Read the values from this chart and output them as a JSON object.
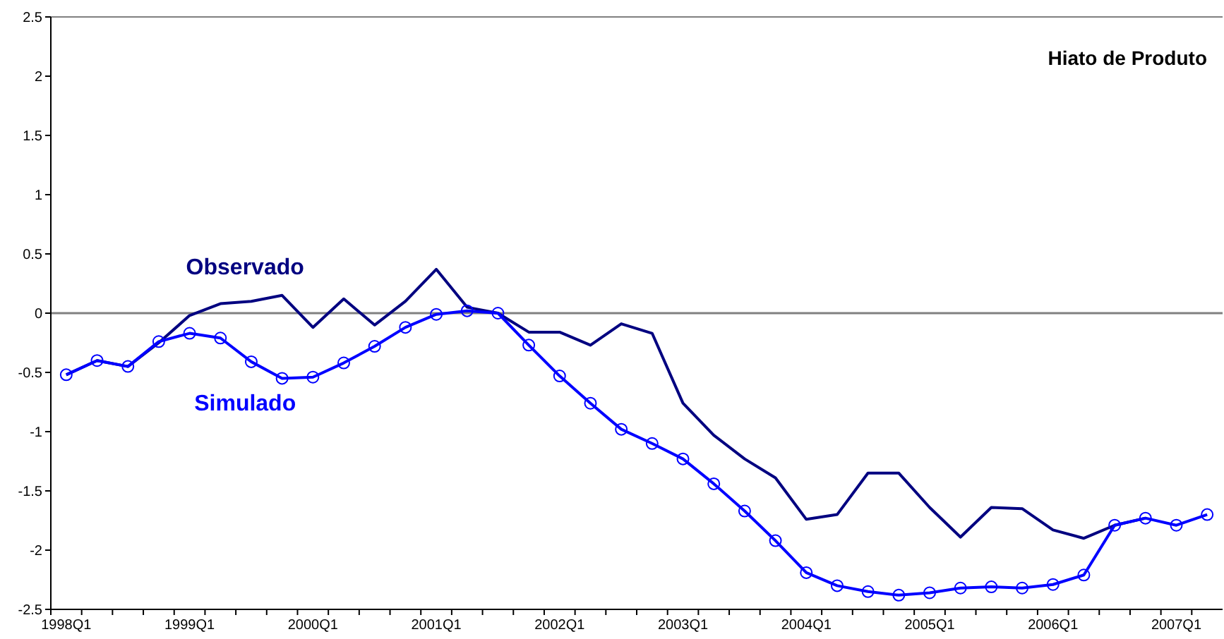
{
  "chart_data": {
    "type": "line",
    "title": "Hiato de Produto",
    "categories": [
      "1998Q1",
      null,
      null,
      null,
      "1999Q1",
      null,
      null,
      null,
      "2000Q1",
      null,
      null,
      null,
      "2001Q1",
      null,
      null,
      null,
      "2002Q1",
      null,
      null,
      null,
      "2003Q1",
      null,
      null,
      null,
      "2004Q1",
      null,
      null,
      null,
      "2005Q1",
      null,
      null,
      null,
      "2006Q1",
      null,
      null,
      null,
      "2007Q1",
      null
    ],
    "series": [
      {
        "name": "Observado",
        "color": "#000080",
        "marker": "none",
        "values": [
          -0.52,
          -0.4,
          -0.45,
          -0.25,
          -0.02,
          0.08,
          0.1,
          0.15,
          -0.12,
          0.12,
          -0.1,
          0.1,
          0.37,
          0.05,
          0.0,
          -0.16,
          -0.16,
          -0.27,
          -0.09,
          -0.17,
          -0.76,
          -1.03,
          -1.23,
          -1.39,
          -1.74,
          -1.7,
          -1.35,
          -1.35,
          -1.64,
          -1.89,
          -1.64,
          -1.65,
          -1.83,
          -1.9,
          -1.79,
          -1.73,
          null,
          null
        ]
      },
      {
        "name": "Simulado",
        "color": "#0000ff",
        "marker": "circle",
        "values": [
          -0.52,
          -0.4,
          -0.45,
          -0.24,
          -0.17,
          -0.21,
          -0.41,
          -0.55,
          -0.54,
          -0.42,
          -0.28,
          -0.12,
          -0.01,
          0.02,
          0.0,
          -0.27,
          -0.53,
          -0.76,
          -0.98,
          -1.1,
          -1.23,
          -1.44,
          -1.67,
          -1.92,
          -2.19,
          -2.3,
          -2.35,
          -2.38,
          -2.36,
          -2.32,
          -2.31,
          -2.32,
          -2.29,
          -2.21,
          -1.79,
          -1.73,
          -1.79,
          -1.7
        ]
      }
    ],
    "ylim": [
      -2.5,
      2.5
    ],
    "yticks": [
      2.5,
      2,
      1.5,
      1,
      0.5,
      0,
      -0.5,
      -1,
      -1.5,
      -2,
      -2.5
    ],
    "ref_lines": [
      {
        "axis": "y",
        "value": 0,
        "color": "#808080"
      }
    ],
    "grid": false,
    "legend": false,
    "line_style": "solid"
  }
}
